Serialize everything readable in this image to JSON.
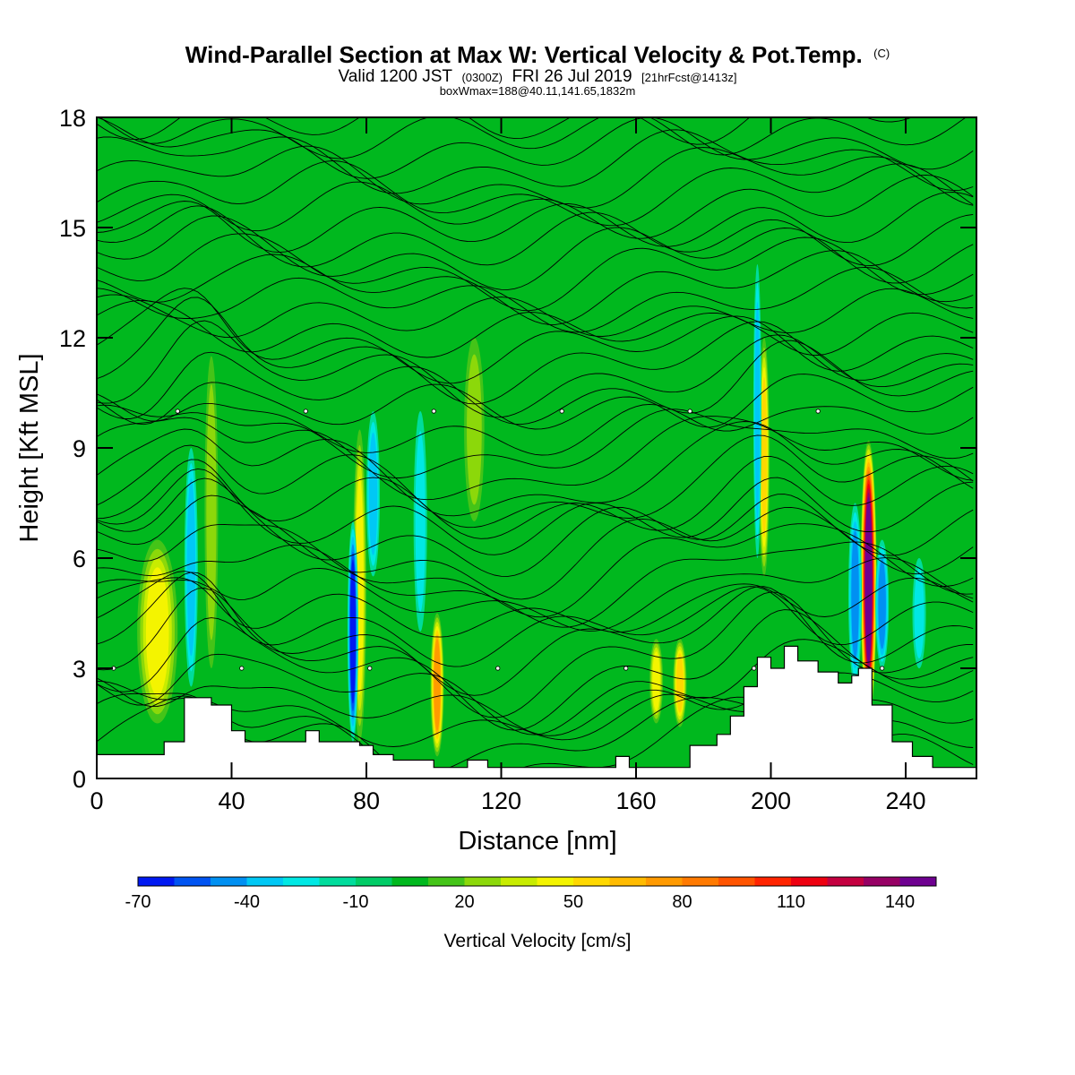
{
  "chart_data": {
    "type": "heatmap",
    "title": "Wind-Parallel Section at Max W: Vertical Velocity & Pot.Temp.",
    "title_mark": "(C)",
    "subtitle_parts": [
      "Valid 1200 JST",
      "(0300Z)",
      "FRI 26 Jul 2019",
      "[21hrFcst@1413z]"
    ],
    "subtitle2": "boxWmax=188@40.11,141.65,1832m",
    "xlabel": "Distance [nm]",
    "ylabel": "Height [Kft MSL]",
    "xlim": [
      0,
      261
    ],
    "ylim": [
      0,
      18
    ],
    "x_ticks": [
      0,
      40,
      80,
      120,
      160,
      200,
      240
    ],
    "y_ticks": [
      0,
      3,
      6,
      9,
      12,
      15,
      18
    ],
    "colorbar": {
      "label": "Vertical Velocity [cm/s]",
      "tick_labels": [
        -70,
        -40,
        -10,
        20,
        50,
        80,
        110,
        140
      ],
      "levels": [
        -70,
        -60,
        -50,
        -40,
        -30,
        -20,
        -10,
        0,
        10,
        20,
        30,
        40,
        50,
        60,
        70,
        80,
        90,
        100,
        110,
        120,
        130,
        140,
        150
      ],
      "colors": [
        "#0019f2",
        "#0054f2",
        "#0090f2",
        "#00c8f5",
        "#00e8e4",
        "#00dc9c",
        "#00cc66",
        "#00b81e",
        "#44c418",
        "#8cd80a",
        "#c8ec00",
        "#f4f400",
        "#ffd800",
        "#ffbb00",
        "#ff9a00",
        "#ff7a00",
        "#ff5400",
        "#ff2400",
        "#ee0010",
        "#c40040",
        "#960064",
        "#6e0090"
      ]
    },
    "background_w": 3,
    "updrafts": [
      {
        "x": 18,
        "y0": 1.5,
        "y1": 6.5,
        "width": 6,
        "w": 40
      },
      {
        "x": 34,
        "y0": 3.0,
        "y1": 11.5,
        "width": 2,
        "w": 28
      },
      {
        "x": 78,
        "y0": 1.0,
        "y1": 9.5,
        "width": 2,
        "w": 45
      },
      {
        "x": 101,
        "y0": 0.6,
        "y1": 4.5,
        "width": 2,
        "w": 70
      },
      {
        "x": 112,
        "y0": 7.0,
        "y1": 12.0,
        "width": 3,
        "w": 28
      },
      {
        "x": 166,
        "y0": 1.5,
        "y1": 3.8,
        "width": 2,
        "w": 40
      },
      {
        "x": 173,
        "y0": 1.4,
        "y1": 3.8,
        "width": 2,
        "w": 55
      },
      {
        "x": 198,
        "y0": 5.5,
        "y1": 12.0,
        "width": 1.6,
        "w": 50
      },
      {
        "x": 229,
        "y0": 1.6,
        "y1": 9.2,
        "width": 2.4,
        "w": 145
      }
    ],
    "downdrafts": [
      {
        "x": 28,
        "y0": 2.5,
        "y1": 9.0,
        "width": 2,
        "w": -30
      },
      {
        "x": 76,
        "y0": 1.0,
        "y1": 7.0,
        "width": 1.6,
        "w": -60
      },
      {
        "x": 82,
        "y0": 5.5,
        "y1": 10.0,
        "width": 2,
        "w": -30
      },
      {
        "x": 96,
        "y0": 4.0,
        "y1": 10.0,
        "width": 2,
        "w": -25
      },
      {
        "x": 196,
        "y0": 6.0,
        "y1": 14.0,
        "width": 1.2,
        "w": -30
      },
      {
        "x": 225,
        "y0": 2.5,
        "y1": 7.5,
        "width": 2,
        "w": -40
      },
      {
        "x": 233,
        "y0": 3.0,
        "y1": 6.5,
        "width": 2,
        "w": -45
      },
      {
        "x": 244,
        "y0": 3.0,
        "y1": 6.0,
        "width": 2,
        "w": -25
      }
    ],
    "terrain": [
      [
        0,
        0.65
      ],
      [
        16,
        0.65
      ],
      [
        20,
        1.0
      ],
      [
        26,
        2.2
      ],
      [
        34,
        2.0
      ],
      [
        40,
        1.3
      ],
      [
        44,
        1.0
      ],
      [
        60,
        1.0
      ],
      [
        62,
        1.3
      ],
      [
        66,
        1.0
      ],
      [
        78,
        0.9
      ],
      [
        82,
        0.65
      ],
      [
        88,
        0.5
      ],
      [
        96,
        0.5
      ],
      [
        100,
        0.3
      ],
      [
        110,
        0.5
      ],
      [
        116,
        0.3
      ],
      [
        140,
        0.3
      ],
      [
        150,
        0.3
      ],
      [
        154,
        0.6
      ],
      [
        158,
        0.3
      ],
      [
        168,
        0.3
      ],
      [
        176,
        0.9
      ],
      [
        184,
        1.2
      ],
      [
        188,
        1.7
      ],
      [
        192,
        2.5
      ],
      [
        196,
        3.3
      ],
      [
        200,
        3.0
      ],
      [
        204,
        3.6
      ],
      [
        208,
        3.2
      ],
      [
        214,
        2.9
      ],
      [
        220,
        2.6
      ],
      [
        224,
        2.8
      ],
      [
        226,
        3.0
      ],
      [
        230,
        2.0
      ],
      [
        236,
        1.0
      ],
      [
        242,
        0.6
      ],
      [
        248,
        0.3
      ],
      [
        261,
        0.3
      ]
    ],
    "theta_line_count": 42,
    "wind_barb_count": 13
  }
}
